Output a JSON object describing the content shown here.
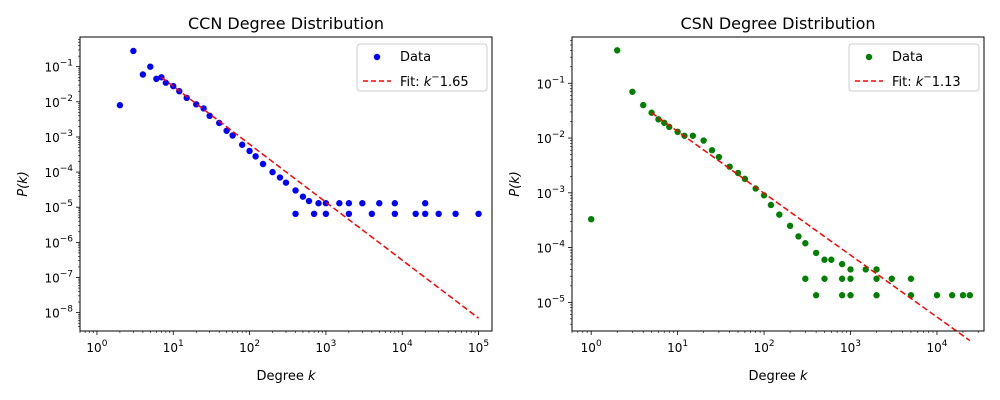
{
  "chart_data": [
    {
      "type": "scatter",
      "title": "CCN Degree Distribution",
      "xlabel_text": "Degree ",
      "xlabel_math": "k",
      "ylabel_text": "P(k)",
      "xscale": "log",
      "yscale": "log",
      "xlim": [
        0.6,
        150000
      ],
      "ylim": [
        3e-09,
        0.7
      ],
      "xticks": [
        {
          "value": 1,
          "base": "10",
          "exp": "0"
        },
        {
          "value": 10,
          "base": "10",
          "exp": "1"
        },
        {
          "value": 100,
          "base": "10",
          "exp": "2"
        },
        {
          "value": 1000,
          "base": "10",
          "exp": "3"
        },
        {
          "value": 10000,
          "base": "10",
          "exp": "4"
        },
        {
          "value": 100000,
          "base": "10",
          "exp": "5"
        }
      ],
      "yticks": [
        {
          "value": 1e-08,
          "base": "10",
          "exp": "−8"
        },
        {
          "value": 1e-07,
          "base": "10",
          "exp": "−7"
        },
        {
          "value": 1e-06,
          "base": "10",
          "exp": "−6"
        },
        {
          "value": 1e-05,
          "base": "10",
          "exp": "−5"
        },
        {
          "value": 0.0001,
          "base": "10",
          "exp": "−4"
        },
        {
          "value": 0.001,
          "base": "10",
          "exp": "−3"
        },
        {
          "value": 0.01,
          "base": "10",
          "exp": "−2"
        },
        {
          "value": 0.1,
          "base": "10",
          "exp": "−1"
        }
      ],
      "legend_position": "top-right",
      "series": [
        {
          "name": "Data",
          "kind": "scatter",
          "color": "#0000ff",
          "points": [
            [
              2,
              0.008
            ],
            [
              3,
              0.28
            ],
            [
              4,
              0.06
            ],
            [
              5,
              0.1
            ],
            [
              6,
              0.045
            ],
            [
              7,
              0.05
            ],
            [
              8,
              0.035
            ],
            [
              10,
              0.028
            ],
            [
              12,
              0.02
            ],
            [
              15,
              0.013
            ],
            [
              20,
              0.0085
            ],
            [
              25,
              0.0065
            ],
            [
              30,
              0.004
            ],
            [
              40,
              0.0025
            ],
            [
              50,
              0.0015
            ],
            [
              60,
              0.0011
            ],
            [
              80,
              0.0006
            ],
            [
              100,
              0.0004
            ],
            [
              120,
              0.00028
            ],
            [
              150,
              0.00017
            ],
            [
              200,
              0.0001
            ],
            [
              250,
              7e-05
            ],
            [
              300,
              5e-05
            ],
            [
              400,
              3e-05
            ],
            [
              500,
              2e-05
            ],
            [
              600,
              1.5e-05
            ],
            [
              800,
              1.3e-05
            ],
            [
              1000,
              1.3e-05
            ],
            [
              1500,
              1.3e-05
            ],
            [
              2000,
              1.3e-05
            ],
            [
              3000,
              1.3e-05
            ],
            [
              5000,
              1.3e-05
            ],
            [
              8000,
              1.3e-05
            ],
            [
              20000,
              1.3e-05
            ],
            [
              400,
              6.5e-06
            ],
            [
              700,
              6.5e-06
            ],
            [
              1000,
              6.5e-06
            ],
            [
              2000,
              6.5e-06
            ],
            [
              4000,
              6.5e-06
            ],
            [
              8000,
              6.5e-06
            ],
            [
              15000,
              6.5e-06
            ],
            [
              20000,
              6.5e-06
            ],
            [
              30000,
              6.5e-06
            ],
            [
              50000,
              6.5e-06
            ],
            [
              100000,
              6.5e-06
            ]
          ]
        },
        {
          "name": "Fit: k^−1.65",
          "kind": "fit-line",
          "color": "#ff0000",
          "exponent": -1.65,
          "x_range": [
            7,
            100000
          ],
          "y_at_x_min": 0.05
        }
      ]
    },
    {
      "type": "scatter",
      "title": "CSN Degree Distribution",
      "xlabel_text": "Degree ",
      "xlabel_math": "k",
      "ylabel_text": "P(k)",
      "xscale": "log",
      "yscale": "log",
      "xlim": [
        0.6,
        35000
      ],
      "ylim": [
        3e-06,
        0.7
      ],
      "xticks": [
        {
          "value": 1,
          "base": "10",
          "exp": "0"
        },
        {
          "value": 10,
          "base": "10",
          "exp": "1"
        },
        {
          "value": 100,
          "base": "10",
          "exp": "2"
        },
        {
          "value": 1000,
          "base": "10",
          "exp": "3"
        },
        {
          "value": 10000,
          "base": "10",
          "exp": "4"
        }
      ],
      "yticks": [
        {
          "value": 1e-05,
          "base": "10",
          "exp": "−5"
        },
        {
          "value": 0.0001,
          "base": "10",
          "exp": "−4"
        },
        {
          "value": 0.001,
          "base": "10",
          "exp": "−3"
        },
        {
          "value": 0.01,
          "base": "10",
          "exp": "−2"
        },
        {
          "value": 0.1,
          "base": "10",
          "exp": "−1"
        }
      ],
      "legend_position": "top-right",
      "series": [
        {
          "name": "Data",
          "kind": "scatter",
          "color": "#008000",
          "points": [
            [
              1,
              0.00033
            ],
            [
              2,
              0.4
            ],
            [
              3,
              0.07
            ],
            [
              4,
              0.04
            ],
            [
              5,
              0.029
            ],
            [
              6,
              0.022
            ],
            [
              7,
              0.019
            ],
            [
              8,
              0.016
            ],
            [
              10,
              0.013
            ],
            [
              12,
              0.011
            ],
            [
              15,
              0.011
            ],
            [
              20,
              0.009
            ],
            [
              25,
              0.006
            ],
            [
              30,
              0.0045
            ],
            [
              40,
              0.003
            ],
            [
              50,
              0.0023
            ],
            [
              60,
              0.0018
            ],
            [
              80,
              0.0012
            ],
            [
              100,
              0.0009
            ],
            [
              120,
              0.0006
            ],
            [
              150,
              0.0004
            ],
            [
              200,
              0.00025
            ],
            [
              250,
              0.00016
            ],
            [
              300,
              0.00012
            ],
            [
              400,
              8e-05
            ],
            [
              500,
              6e-05
            ],
            [
              600,
              6e-05
            ],
            [
              800,
              5e-05
            ],
            [
              1000,
              4e-05
            ],
            [
              1500,
              4e-05
            ],
            [
              2000,
              4e-05
            ],
            [
              300,
              2.7e-05
            ],
            [
              500,
              2.7e-05
            ],
            [
              800,
              2.7e-05
            ],
            [
              1000,
              2.7e-05
            ],
            [
              2000,
              2.7e-05
            ],
            [
              3000,
              2.7e-05
            ],
            [
              5000,
              2.7e-05
            ],
            [
              400,
              1.35e-05
            ],
            [
              800,
              1.35e-05
            ],
            [
              1000,
              1.35e-05
            ],
            [
              2000,
              1.35e-05
            ],
            [
              5000,
              1.35e-05
            ],
            [
              10000,
              1.35e-05
            ],
            [
              15000,
              1.35e-05
            ],
            [
              20000,
              1.35e-05
            ],
            [
              24000,
              1.35e-05
            ]
          ]
        },
        {
          "name": "Fit: k^−1.13",
          "kind": "fit-line",
          "color": "#ff0000",
          "exponent": -1.13,
          "x_range": [
            5,
            24000
          ],
          "y_at_x_min": 0.029
        }
      ]
    }
  ]
}
